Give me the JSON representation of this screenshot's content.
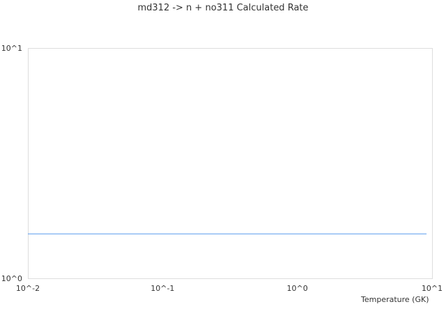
{
  "chart_data": {
    "type": "line",
    "title": "md312 -> n + no311 Calculated Rate",
    "xlabel": "Temperature (GK)",
    "ylabel": "",
    "xscale": "log",
    "yscale": "log",
    "xlim": [
      0.01,
      10
    ],
    "ylim": [
      1,
      10
    ],
    "x_ticks": [
      "10^-2",
      "10^-1",
      "10^0",
      "10^1"
    ],
    "y_ticks": [
      "10^0",
      "10^1"
    ],
    "grid": false,
    "series": [
      {
        "color": "#5599ee",
        "x": [
          0.01,
          9.1
        ],
        "y": [
          1.56,
          1.56
        ]
      }
    ]
  }
}
